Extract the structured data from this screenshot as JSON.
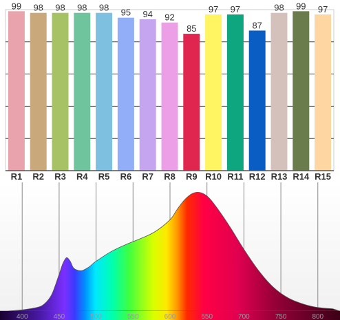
{
  "chart_data": [
    {
      "type": "bar",
      "categories": [
        "R1",
        "R2",
        "R3",
        "R4",
        "R5",
        "R6",
        "R7",
        "R8",
        "R9",
        "R10",
        "R11",
        "R12",
        "R13",
        "R14",
        "R15"
      ],
      "values": [
        99,
        98,
        98,
        98,
        98,
        95,
        94,
        92,
        85,
        97,
        97,
        87,
        98,
        99,
        97
      ],
      "colors": [
        "#e8a3ad",
        "#c9a87c",
        "#a6c264",
        "#6fc49d",
        "#7dc0df",
        "#93aef9",
        "#c5a5ef",
        "#ec9fe6",
        "#e0264f",
        "#fff462",
        "#0da67f",
        "#0a5dc2",
        "#d5c1bc",
        "#6b7c4c",
        "#fed6a1"
      ],
      "ylim": [
        0,
        100
      ],
      "grid": true
    },
    {
      "type": "area",
      "x": [
        380,
        400,
        420,
        430,
        440,
        450,
        455,
        460,
        465,
        470,
        480,
        490,
        500,
        520,
        540,
        560,
        580,
        600,
        610,
        620,
        630,
        640,
        650,
        660,
        680,
        700,
        720,
        740,
        760,
        780,
        800,
        820
      ],
      "y": [
        0.0,
        0.01,
        0.03,
        0.06,
        0.14,
        0.31,
        0.4,
        0.45,
        0.42,
        0.36,
        0.34,
        0.37,
        0.42,
        0.5,
        0.56,
        0.61,
        0.67,
        0.77,
        0.86,
        0.94,
        0.99,
        1.0,
        0.97,
        0.9,
        0.72,
        0.52,
        0.34,
        0.2,
        0.11,
        0.06,
        0.03,
        0.02
      ],
      "xlim": [
        370,
        830
      ],
      "ylim": [
        0,
        1.05
      ],
      "x_ticks": [
        400,
        450,
        500,
        550,
        600,
        650,
        700,
        750,
        800
      ],
      "grid": true
    }
  ]
}
